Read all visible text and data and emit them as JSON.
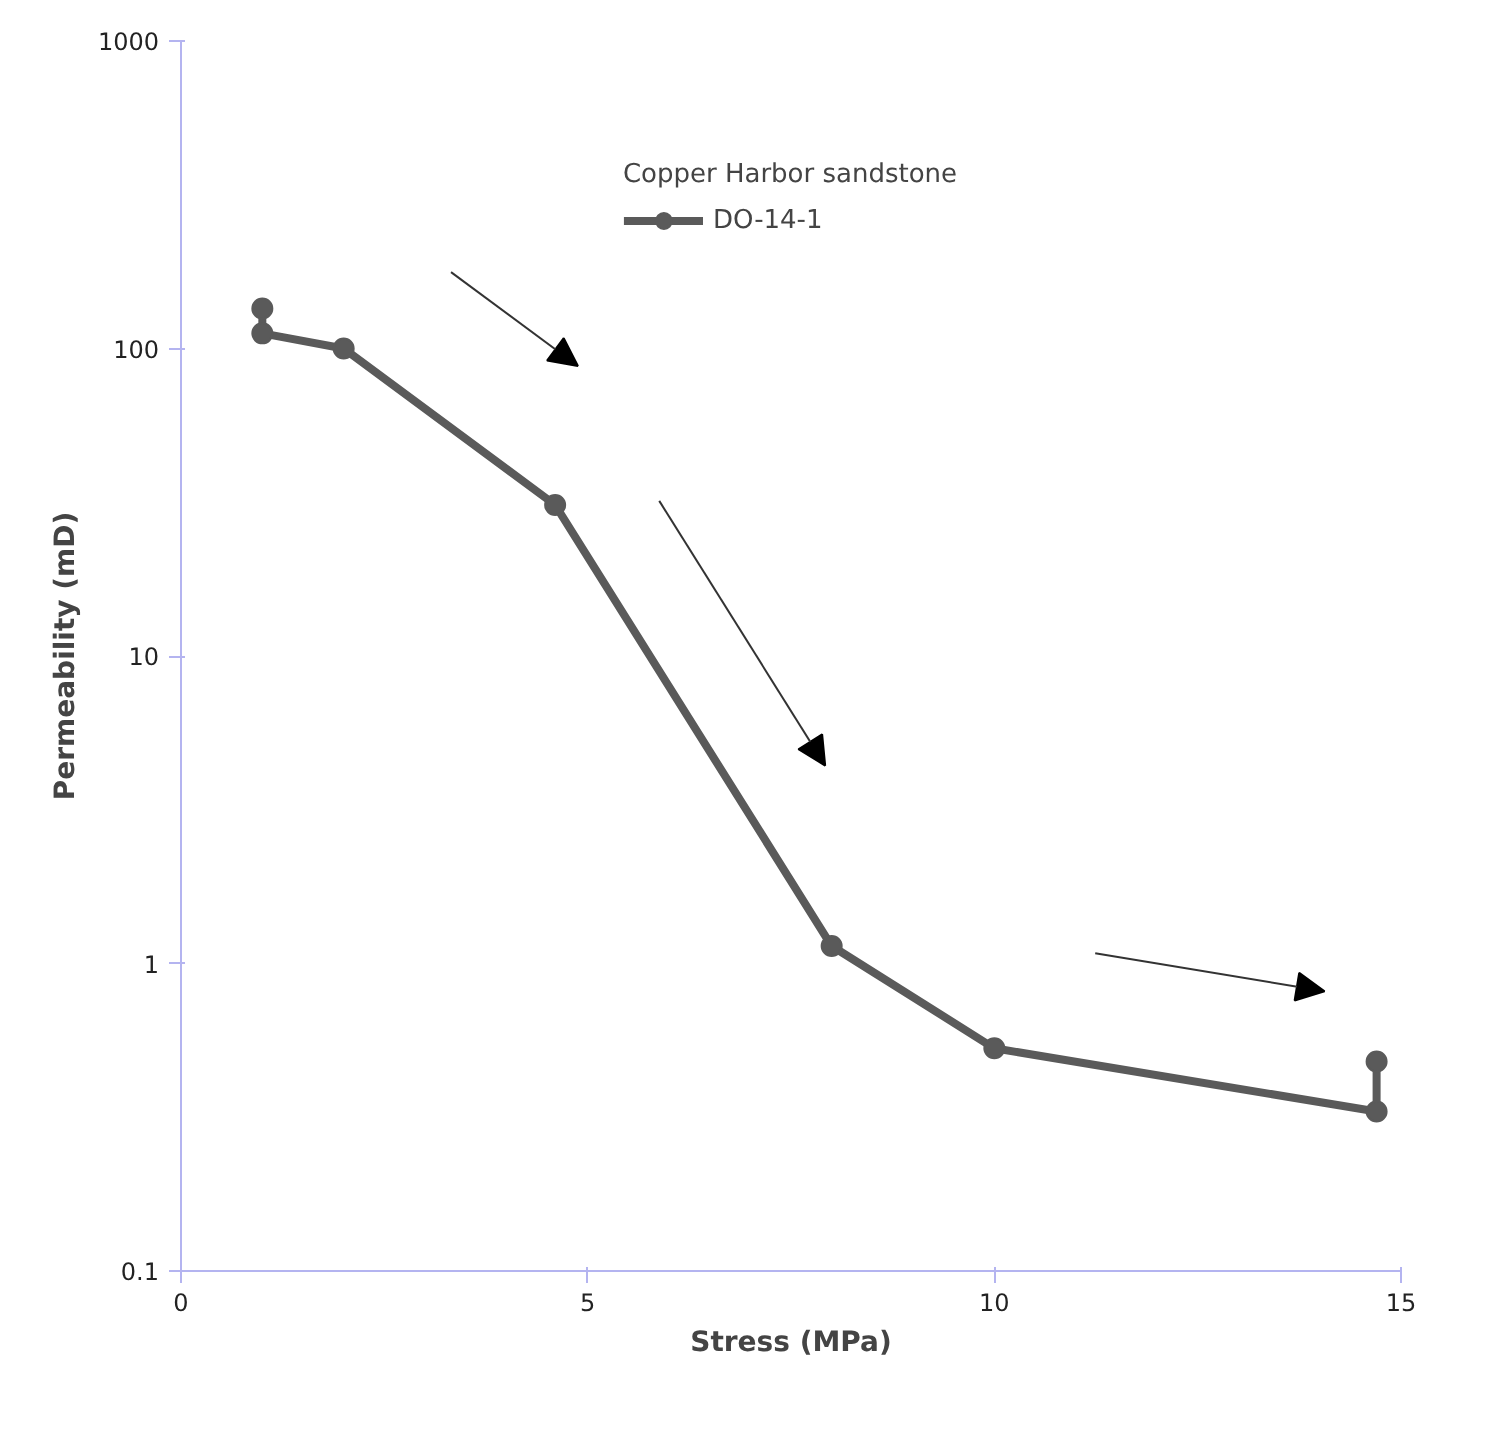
{
  "chart_data": {
    "type": "line",
    "xlabel": "Stress (MPa)",
    "ylabel": "Permeability (mD)",
    "legend_title": "Copper Harbor sandstone",
    "log": "y",
    "xlim": [
      0,
      15
    ],
    "xticks": [
      0,
      5,
      10,
      15
    ],
    "ylim": [
      0.1,
      1000
    ],
    "yticks": [
      0.1,
      1,
      10,
      100,
      1000
    ],
    "grid": false,
    "legend": "top",
    "marker": "circle",
    "line_style": "solid",
    "series": [
      {
        "name": "DO-14-1",
        "color": "#5a5a5a",
        "x": [
          1,
          1,
          2,
          4.6,
          8,
          10,
          14.7,
          14.7
        ],
        "values": [
          135,
          112,
          100,
          31,
          1.14,
          0.53,
          0.33,
          0.48
        ]
      }
    ]
  }
}
